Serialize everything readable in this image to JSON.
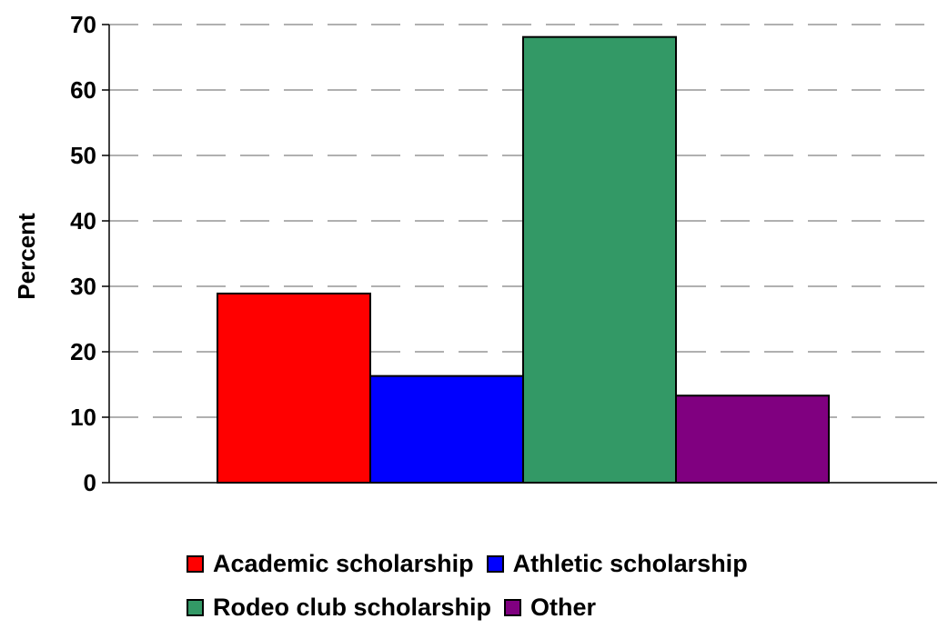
{
  "chart_data": {
    "type": "bar",
    "categories": [
      "Academic scholarship",
      "Athletic scholarship",
      "Rodeo club scholarship",
      "Other"
    ],
    "values": [
      28.9,
      16.3,
      68.1,
      13.3
    ],
    "colors": [
      "#ff0000",
      "#0000ff",
      "#339966",
      "#800080"
    ],
    "title": "",
    "xlabel": "",
    "ylabel": "Percent",
    "ylim": [
      0,
      70
    ],
    "yticks": [
      0,
      10,
      20,
      30,
      40,
      50,
      60,
      70
    ],
    "grid": true,
    "legend_position": "bottom"
  }
}
